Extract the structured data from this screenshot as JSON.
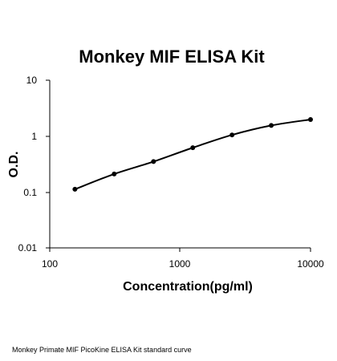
{
  "chart_data": {
    "type": "scatter",
    "title": "Monkey MIF ELISA Kit",
    "xlabel": "Concentration(pg/ml)",
    "ylabel": "O.D.",
    "xscale": "log",
    "yscale": "log",
    "xlim": [
      100,
      10000
    ],
    "ylim": [
      0.01,
      10
    ],
    "x_ticks": [
      "100",
      "1000",
      "10000"
    ],
    "y_ticks": [
      "10",
      "1",
      "0.1",
      "0.01"
    ],
    "grid": false,
    "legend": "none",
    "trendline": "smooth curve",
    "series": [
      {
        "x": [
          156,
          312,
          625,
          1250,
          2500,
          5000,
          10000
        ],
        "y": [
          0.112,
          0.21,
          0.35,
          0.62,
          1.05,
          1.55,
          1.98
        ]
      }
    ]
  },
  "caption": "Monkey Primate MIF PicoKine ELISA Kit standard curve",
  "colors": {
    "line": "#000000",
    "marker": "#000000",
    "axis": "#000000"
  }
}
